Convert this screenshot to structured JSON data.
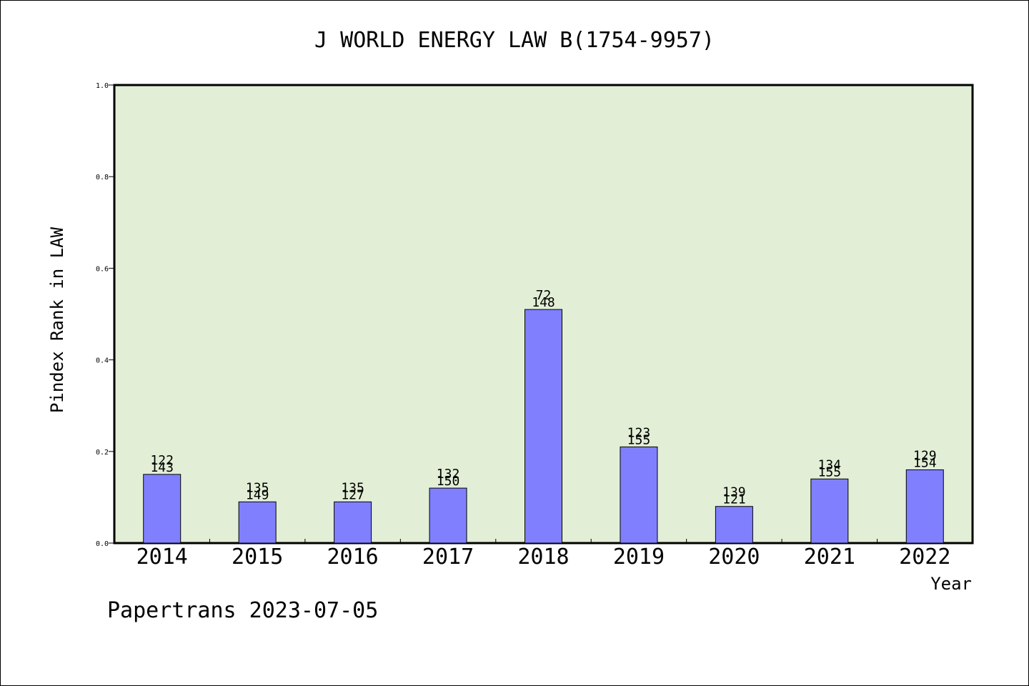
{
  "chart_data": {
    "type": "bar",
    "title": "J WORLD ENERGY LAW B(1754-9957)",
    "xlabel": "Year",
    "ylabel": "Pindex Rank in LAW",
    "categories": [
      "2014",
      "2015",
      "2016",
      "2017",
      "2018",
      "2019",
      "2020",
      "2021",
      "2022"
    ],
    "values": [
      0.15,
      0.09,
      0.09,
      0.12,
      0.51,
      0.21,
      0.08,
      0.14,
      0.16
    ],
    "bar_labels_top": [
      "122",
      "135",
      "135",
      "132",
      "72",
      "123",
      "139",
      "134",
      "129"
    ],
    "bar_labels_bottom": [
      "143",
      "149",
      "127",
      "150",
      "148",
      "155",
      "121",
      "155",
      "154"
    ],
    "ylim": [
      0,
      1.0
    ],
    "yticks": [
      "0.0",
      "0.2",
      "0.4",
      "0.6",
      "0.8",
      "1.0"
    ],
    "ytick_values": [
      0.0,
      0.2,
      0.4,
      0.6,
      0.8,
      1.0
    ],
    "grid": false,
    "colors": {
      "plot_background": "#e2efd6",
      "bar_fill": "#8080ff",
      "bar_stroke": "#000000"
    }
  },
  "footer": {
    "text": "Papertrans 2023-07-05"
  }
}
